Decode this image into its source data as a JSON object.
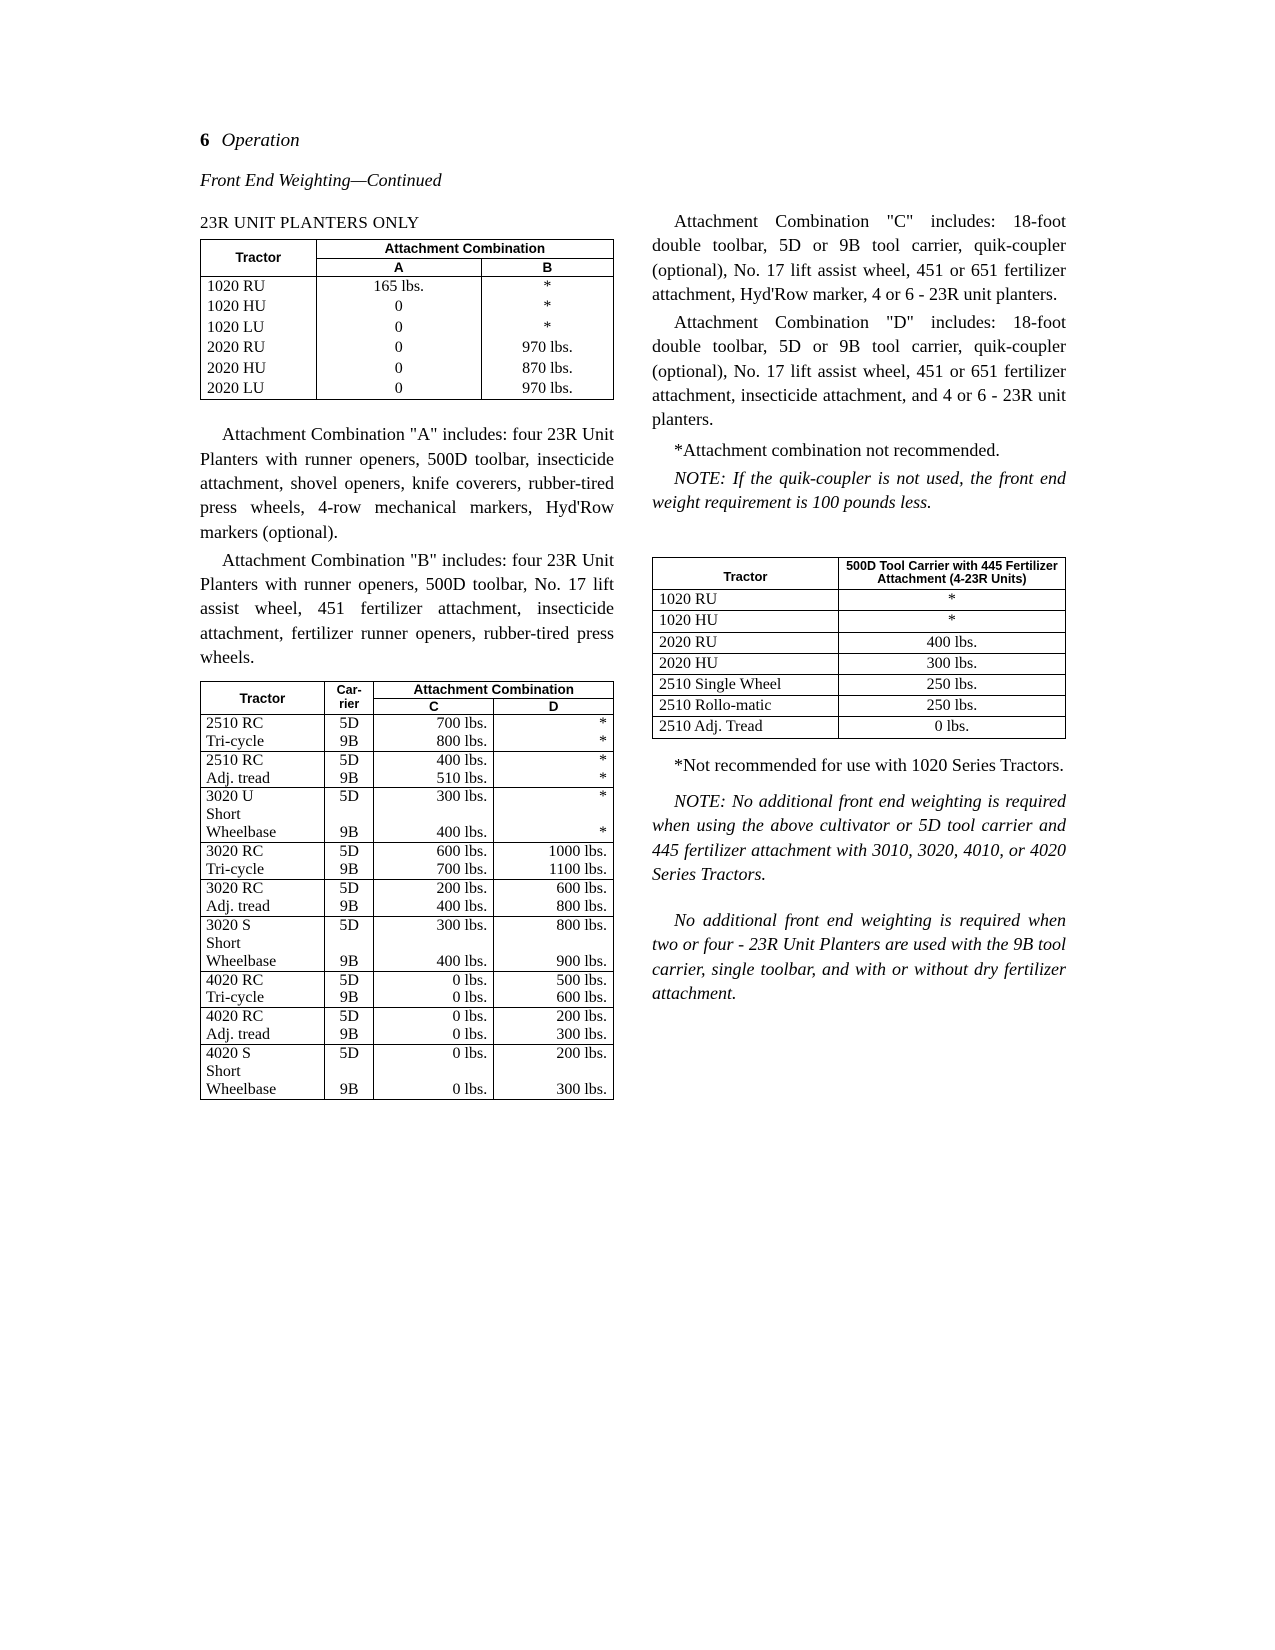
{
  "page": {
    "number": "6",
    "section": "Operation"
  },
  "subhead": "Front End Weighting—Continued",
  "table_ab": {
    "caption": "23R UNIT PLANTERS ONLY",
    "head": {
      "tractor": "Tractor",
      "combo": "Attachment Combination",
      "a": "A",
      "b": "B"
    },
    "rows": [
      {
        "tractor": "1020 RU",
        "a": "165 lbs.",
        "b": "*"
      },
      {
        "tractor": "1020 HU",
        "a": "0",
        "b": "*"
      },
      {
        "tractor": "1020 LU",
        "a": "0",
        "b": "*"
      },
      {
        "tractor": "2020 RU",
        "a": "0",
        "b": "970 lbs."
      },
      {
        "tractor": "2020 HU",
        "a": "0",
        "b": "870 lbs."
      },
      {
        "tractor": "2020 LU",
        "a": "0",
        "b": "970 lbs."
      }
    ]
  },
  "para_a": "Attachment Combination \"A\" includes: four 23R Unit Planters with runner openers, 500D toolbar, insecticide attachment, shovel openers, knife coverers, rubber-tired press wheels, 4-row mechanical markers, Hyd'Row markers (optional).",
  "para_b": "Attachment Combination \"B\" includes: four 23R Unit Planters with runner openers, 500D toolbar, No. 17 lift assist wheel, 451 fertilizer attachment, insecticide attachment, fertilizer runner openers, rubber-tired press wheels.",
  "table_cd": {
    "head": {
      "tractor": "Tractor",
      "carrier": "Car-\nrier",
      "combo": "Attachment Combination",
      "c": "C",
      "d": "D"
    },
    "rows": [
      [
        "2510 RC",
        "5D",
        "700 lbs.",
        "*"
      ],
      [
        "Tri-cycle",
        "9B",
        "800 lbs.",
        "*"
      ],
      [
        "2510 RC",
        "5D",
        "400 lbs.",
        "*"
      ],
      [
        "Adj. tread",
        "9B",
        "510 lbs.",
        "*"
      ],
      [
        "3020 U",
        "5D",
        "300 lbs.",
        "*"
      ],
      [
        "Short",
        "",
        "",
        ""
      ],
      [
        "Wheelbase",
        "9B",
        "400 lbs.",
        "*"
      ],
      [
        "3020 RC",
        "5D",
        "600 lbs.",
        "1000 lbs."
      ],
      [
        "Tri-cycle",
        "9B",
        "700 lbs.",
        "1100 lbs."
      ],
      [
        "3020 RC",
        "5D",
        "200 lbs.",
        "600 lbs."
      ],
      [
        "Adj. tread",
        "9B",
        "400 lbs.",
        "800 lbs."
      ],
      [
        "3020 S",
        "5D",
        "300 lbs.",
        "800 lbs."
      ],
      [
        "Short",
        "",
        "",
        ""
      ],
      [
        "Wheelbase",
        "9B",
        "400 lbs.",
        "900 lbs."
      ],
      [
        "4020 RC",
        "5D",
        "0 lbs.",
        "500 lbs."
      ],
      [
        "Tri-cycle",
        "9B",
        "0 lbs.",
        "600 lbs."
      ],
      [
        "4020 RC",
        "5D",
        "0 lbs.",
        "200 lbs."
      ],
      [
        "Adj. tread",
        "9B",
        "0 lbs.",
        "300 lbs."
      ],
      [
        "4020 S",
        "5D",
        "0 lbs.",
        "200 lbs."
      ],
      [
        "Short",
        "",
        "",
        ""
      ],
      [
        "Wheelbase",
        "9B",
        "0 lbs.",
        "300 lbs."
      ]
    ],
    "group_breaks": [
      1,
      3,
      6,
      8,
      10,
      13,
      15,
      17,
      20
    ]
  },
  "para_c": "Attachment Combination \"C\" includes: 18-foot double toolbar, 5D or 9B tool carrier, quik-coupler (optional), No. 17 lift assist wheel, 451 or 651 fertilizer attachment, Hyd'Row marker, 4 or 6 - 23R unit planters.",
  "para_d": "Attachment Combination \"D\" includes: 18-foot double toolbar, 5D or 9B tool carrier, quik-coupler (optional), No. 17 lift assist wheel, 451 or 651 fertilizer attachment, insecticide attachment, and 4 or 6 - 23R unit planters.",
  "para_star1": "*Attachment combination not recommended.",
  "note1": "NOTE: If the quik-coupler is not used, the front end weight requirement is 100 pounds less.",
  "table3": {
    "head": {
      "tractor": "Tractor",
      "col2": "500D Tool Carrier with 445 Fertilizer Attachment (4-23R Units)"
    },
    "rows": [
      [
        "1020 RU",
        "*"
      ],
      [
        "1020 HU",
        "*"
      ],
      [
        "2020 RU",
        "400 lbs."
      ],
      [
        "2020 HU",
        "300 lbs."
      ],
      [
        "2510 Single Wheel",
        "250 lbs."
      ],
      [
        "2510 Rollo-matic",
        "250 lbs."
      ],
      [
        "2510 Adj. Tread",
        "0 lbs."
      ]
    ]
  },
  "para_star2": "*Not recommended for use with 1020 Series Tractors.",
  "note2": "NOTE: No additional front end weighting is required when using the above cultivator or 5D tool carrier and 445 fertilizer attachment with 3010, 3020, 4010, or 4020 Series Tractors.",
  "note3": "No additional front end weighting is required when two or four - 23R Unit Planters are used with the 9B tool carrier, single toolbar, and with or without dry fertilizer attachment."
}
